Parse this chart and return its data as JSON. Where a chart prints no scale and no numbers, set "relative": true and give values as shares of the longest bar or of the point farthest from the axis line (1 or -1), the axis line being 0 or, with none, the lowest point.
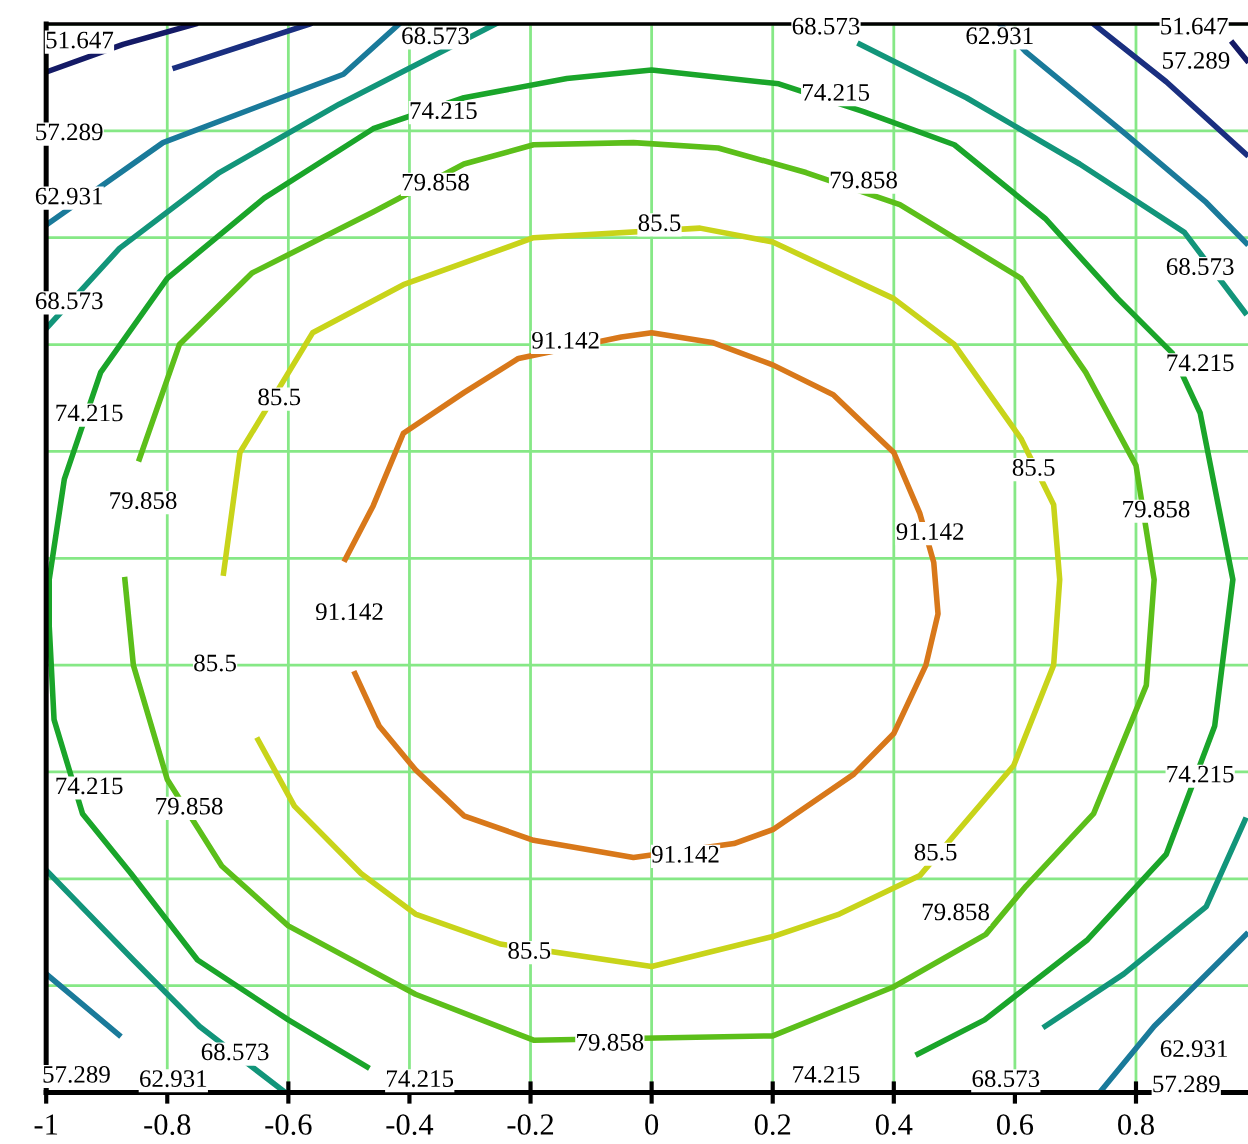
{
  "chart_data": {
    "type": "line",
    "relative": true,
    "legend": false,
    "grid": true,
    "tick_labels": "x",
    "line_style": "solid",
    "marker": "none",
    "xlim": [
      -1,
      0.985
    ],
    "xticks": [
      -1,
      -0.8,
      -0.6,
      -0.4,
      -0.2,
      0,
      0.2,
      0.4,
      0.6,
      0.8
    ],
    "series": [
      {
        "color": "#d8781a",
        "x": [
          -0.506,
          -0.46,
          -0.41,
          -0.31,
          -0.22,
          -0.05,
          0.0,
          0.1,
          0.2,
          0.3,
          0.4,
          0.443,
          0.466,
          0.473,
          0.453,
          0.4,
          0.334,
          0.2,
          0.136,
          -0.03,
          -0.195,
          -0.31,
          -0.39,
          -0.45,
          -0.49
        ],
        "values": [
          0.499,
          0.549,
          0.617,
          0.655,
          0.687,
          0.707,
          0.711,
          0.702,
          0.681,
          0.653,
          0.599,
          0.542,
          0.496,
          0.448,
          0.4,
          0.336,
          0.298,
          0.246,
          0.233,
          0.22,
          0.236,
          0.259,
          0.302,
          0.343,
          0.392
        ]
      },
      {
        "color": "#c8d41a",
        "x": [
          -0.707,
          -0.68,
          -0.56,
          -0.41,
          -0.195,
          0.08,
          0.2,
          0.4,
          0.5,
          0.61,
          0.664,
          0.674,
          0.664,
          0.598,
          0.443,
          0.31,
          0.2,
          0.0,
          -0.25,
          -0.39,
          -0.48,
          -0.59,
          -0.65
        ],
        "values": [
          0.486,
          0.599,
          0.711,
          0.756,
          0.8,
          0.809,
          0.796,
          0.743,
          0.7,
          0.612,
          0.55,
          0.48,
          0.4,
          0.306,
          0.203,
          0.167,
          0.146,
          0.118,
          0.139,
          0.167,
          0.205,
          0.268,
          0.33
        ]
      },
      {
        "color": "#5cbf1a",
        "x": [
          -0.846,
          -0.78,
          -0.66,
          -0.46,
          -0.31,
          -0.195,
          -0.03,
          0.11,
          0.255,
          0.41,
          0.61,
          0.717,
          0.8,
          0.83,
          0.817,
          0.73,
          0.618,
          0.552,
          0.4,
          0.2,
          -0.195,
          -0.39,
          -0.6,
          -0.71,
          -0.8,
          -0.856,
          -0.87
        ],
        "values": [
          0.593,
          0.7,
          0.767,
          0.824,
          0.869,
          0.887,
          0.889,
          0.884,
          0.861,
          0.831,
          0.762,
          0.674,
          0.587,
          0.48,
          0.381,
          0.261,
          0.193,
          0.148,
          0.099,
          0.053,
          0.049,
          0.092,
          0.156,
          0.212,
          0.293,
          0.4,
          0.48
        ]
      },
      {
        "color": "#1aa52a",
        "x": [
          -0.47,
          -0.6,
          -0.75,
          -0.86,
          -0.94,
          -0.987,
          -0.995,
          -0.995,
          -0.97,
          -0.91,
          -0.8,
          -0.64,
          -0.46,
          -0.31,
          -0.14,
          0.0,
          0.21,
          0.35,
          0.5,
          0.65,
          0.77,
          0.86,
          0.906,
          0.96,
          0.93,
          0.85,
          0.72,
          0.55,
          0.44
        ],
        "values": [
          0.024,
          0.068,
          0.124,
          0.205,
          0.261,
          0.349,
          0.437,
          0.48,
          0.574,
          0.674,
          0.762,
          0.837,
          0.902,
          0.931,
          0.949,
          0.957,
          0.944,
          0.918,
          0.887,
          0.818,
          0.743,
          0.692,
          0.636,
          0.48,
          0.343,
          0.223,
          0.143,
          0.068,
          0.036
        ]
      },
      {
        "color": "#12957a",
        "x": [
          -1.0,
          -0.879,
          -0.714,
          -0.516,
          -0.258,
          null,
          0.344,
          0.52,
          0.707,
          0.88,
          0.98,
          null,
          0.98,
          0.916,
          0.78,
          0.65,
          null,
          -0.605,
          -0.747,
          -0.856,
          -1.0
        ],
        "values": [
          0.715,
          0.79,
          0.861,
          0.925,
          1.0,
          null,
          0.981,
          0.931,
          0.869,
          0.805,
          0.73,
          null,
          0.255,
          0.174,
          0.111,
          0.062,
          null,
          0.0,
          0.062,
          0.124,
          0.208
        ]
      },
      {
        "color": "#1a7a9a",
        "x": [
          -1.0,
          -0.807,
          -0.509,
          -0.417,
          null,
          0.575,
          0.618,
          0.783,
          0.916,
          0.982,
          null,
          0.74,
          0.83,
          0.94,
          0.982,
          null,
          -1.0,
          -0.88
        ],
        "values": [
          0.812,
          0.889,
          0.953,
          1.0,
          null,
          1.0,
          0.974,
          0.897,
          0.833,
          0.795,
          null,
          0.0,
          0.062,
          0.124,
          0.148,
          null,
          0.111,
          0.054
        ]
      },
      {
        "color": "#1a2f80",
        "x": [
          -0.787,
          -0.565,
          null,
          0.73,
          0.85,
          0.982
        ],
        "values": [
          0.959,
          1.0,
          null,
          1.0,
          0.946,
          0.878
        ]
      },
      {
        "color": "#141a66",
        "x": [
          -1.0,
          -0.873,
          -0.754,
          null,
          0.96,
          0.983
        ],
        "values": [
          0.955,
          0.981,
          1.0,
          null,
          0.982,
          0.966
        ]
      }
    ],
    "annotations": [
      {
        "text": "51.647",
        "x": -0.945,
        "y": 0.983
      },
      {
        "text": "51.647",
        "x": 0.896,
        "y": 0.996
      },
      {
        "text": "57.289",
        "x": -0.962,
        "y": 0.897
      },
      {
        "text": "57.289",
        "x": 0.899,
        "y": 0.964
      },
      {
        "text": "57.289",
        "x": -0.95,
        "y": 0.015
      },
      {
        "text": "57.289",
        "x": 0.883,
        "y": 0.006
      },
      {
        "text": "62.931",
        "x": -0.962,
        "y": 0.837
      },
      {
        "text": "62.931",
        "x": 0.575,
        "y": 0.987
      },
      {
        "text": "62.931",
        "x": -0.79,
        "y": 0.011
      },
      {
        "text": "62.931",
        "x": 0.896,
        "y": 0.039
      },
      {
        "text": "68.573",
        "x": -0.962,
        "y": 0.739
      },
      {
        "text": "68.573",
        "x": -0.357,
        "y": 0.987
      },
      {
        "text": "68.573",
        "x": 0.288,
        "y": 0.996
      },
      {
        "text": "68.573",
        "x": 0.906,
        "y": 0.771
      },
      {
        "text": "68.573",
        "x": -0.688,
        "y": 0.036
      },
      {
        "text": "68.573",
        "x": 0.585,
        "y": 0.011
      },
      {
        "text": "74.215",
        "x": -0.344,
        "y": 0.917
      },
      {
        "text": "74.215",
        "x": 0.304,
        "y": 0.934
      },
      {
        "text": "74.215",
        "x": -0.929,
        "y": 0.634
      },
      {
        "text": "74.215",
        "x": 0.906,
        "y": 0.681
      },
      {
        "text": "74.215",
        "x": -0.929,
        "y": 0.285
      },
      {
        "text": "74.215",
        "x": 0.906,
        "y": 0.296
      },
      {
        "text": "74.215",
        "x": -0.383,
        "y": 0.011
      },
      {
        "text": "74.215",
        "x": 0.288,
        "y": 0.015
      },
      {
        "text": "79.858",
        "x": -0.357,
        "y": 0.85
      },
      {
        "text": "79.858",
        "x": 0.35,
        "y": 0.852
      },
      {
        "text": "79.858",
        "x": -0.84,
        "y": 0.552
      },
      {
        "text": "79.858",
        "x": 0.833,
        "y": 0.544
      },
      {
        "text": "79.858",
        "x": -0.764,
        "y": 0.266
      },
      {
        "text": "79.858",
        "x": 0.502,
        "y": 0.167
      },
      {
        "text": "79.858",
        "x": -0.069,
        "y": 0.045
      },
      {
        "text": "85.5",
        "x": -0.615,
        "y": 0.649
      },
      {
        "text": "85.5",
        "x": 0.013,
        "y": 0.812
      },
      {
        "text": "85.5",
        "x": 0.631,
        "y": 0.583
      },
      {
        "text": "85.5",
        "x": -0.721,
        "y": 0.4
      },
      {
        "text": "85.5",
        "x": 0.469,
        "y": 0.223
      },
      {
        "text": "85.5",
        "x": -0.202,
        "y": 0.131
      },
      {
        "text": "91.142",
        "x": -0.142,
        "y": 0.702
      },
      {
        "text": "91.142",
        "x": 0.46,
        "y": 0.523
      },
      {
        "text": "91.142",
        "x": -0.499,
        "y": 0.448
      },
      {
        "text": "91.142",
        "x": 0.056,
        "y": 0.221
      }
    ]
  }
}
